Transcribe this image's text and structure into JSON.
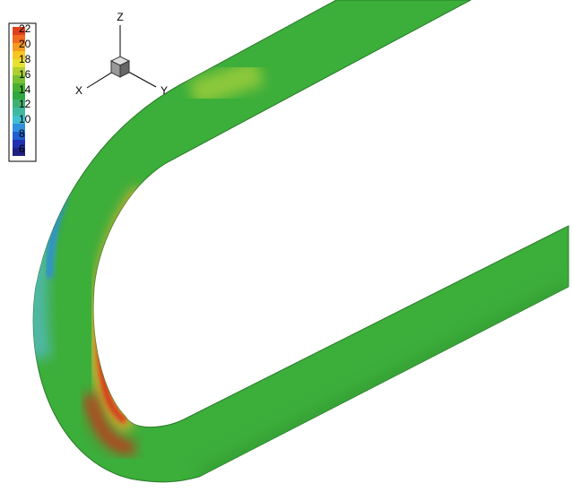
{
  "legend": {
    "labels": [
      "22",
      "20",
      "18",
      "16",
      "14",
      "12",
      "10",
      "8",
      "6"
    ]
  },
  "axes": {
    "x": "X",
    "y": "Y",
    "z": "Z"
  }
}
